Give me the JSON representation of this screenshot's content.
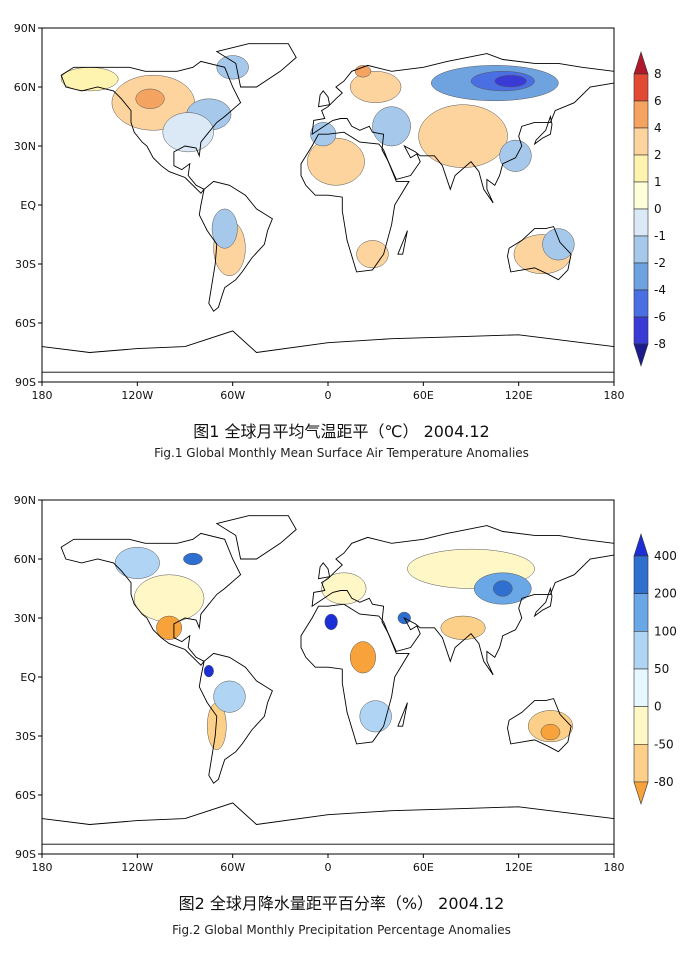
{
  "figures": [
    {
      "id": "temperature",
      "caption_cn": "图1  全球月平均气温距平（℃）  2004.12",
      "caption_en": "Fig.1  Global Monthly Mean Surface Air Temperature Anomalies",
      "lat_labels": [
        "90N",
        "60N",
        "30N",
        "EQ",
        "30S",
        "60S",
        "90S"
      ],
      "lon_labels": [
        "180",
        "120W",
        "60W",
        "0",
        "60E",
        "120E",
        "180"
      ],
      "colorbar": {
        "labels": [
          "8",
          "6",
          "4",
          "2",
          "1",
          "0",
          "-1",
          "-2",
          "-4",
          "-6",
          "-8"
        ],
        "colors": [
          "#b2182b",
          "#e34a33",
          "#f4a460",
          "#fdd49e",
          "#fff3b0",
          "#ffffd9",
          "#dbe8f5",
          "#a6c8ea",
          "#6fa3e0",
          "#4a6fe3",
          "#3a3ad6",
          "#1c1c8c"
        ]
      },
      "regions": [
        {
          "color": "#fdd49e",
          "lon": -110,
          "lat": 52,
          "rx": 26,
          "ry": 14
        },
        {
          "color": "#f4a460",
          "lon": -112,
          "lat": 54,
          "rx": 9,
          "ry": 5
        },
        {
          "color": "#fff3b0",
          "lon": -150,
          "lat": 64,
          "rx": 18,
          "ry": 6
        },
        {
          "color": "#a6c8ea",
          "lon": -75,
          "lat": 46,
          "rx": 14,
          "ry": 8
        },
        {
          "color": "#dbe8f5",
          "lon": -88,
          "lat": 37,
          "rx": 16,
          "ry": 10
        },
        {
          "color": "#a6c8ea",
          "lon": -60,
          "lat": 70,
          "rx": 10,
          "ry": 6
        },
        {
          "color": "#fdd49e",
          "lon": -62,
          "lat": -22,
          "rx": 10,
          "ry": 14
        },
        {
          "color": "#a6c8ea",
          "lon": -65,
          "lat": -12,
          "rx": 8,
          "ry": 10
        },
        {
          "color": "#fdd49e",
          "lon": 5,
          "lat": 22,
          "rx": 18,
          "ry": 12
        },
        {
          "color": "#a6c8ea",
          "lon": -3,
          "lat": 36,
          "rx": 8,
          "ry": 6
        },
        {
          "color": "#fdd49e",
          "lon": 30,
          "lat": 60,
          "rx": 16,
          "ry": 8
        },
        {
          "color": "#f4a460",
          "lon": 22,
          "lat": 68,
          "rx": 5,
          "ry": 3
        },
        {
          "color": "#a6c8ea",
          "lon": 40,
          "lat": 40,
          "rx": 12,
          "ry": 10
        },
        {
          "color": "#fdd49e",
          "lon": 28,
          "lat": -25,
          "rx": 10,
          "ry": 7
        },
        {
          "color": "#fdd49e",
          "lon": 85,
          "lat": 35,
          "rx": 28,
          "ry": 16
        },
        {
          "color": "#6fa3e0",
          "lon": 105,
          "lat": 62,
          "rx": 40,
          "ry": 9
        },
        {
          "color": "#4a6fe3",
          "lon": 110,
          "lat": 63,
          "rx": 20,
          "ry": 5
        },
        {
          "color": "#3a3ad6",
          "lon": 115,
          "lat": 63,
          "rx": 10,
          "ry": 3
        },
        {
          "color": "#a6c8ea",
          "lon": 118,
          "lat": 25,
          "rx": 10,
          "ry": 8
        },
        {
          "color": "#fdd49e",
          "lon": 135,
          "lat": -25,
          "rx": 18,
          "ry": 10
        },
        {
          "color": "#a6c8ea",
          "lon": 145,
          "lat": -20,
          "rx": 10,
          "ry": 8
        }
      ]
    },
    {
      "id": "precipitation",
      "caption_cn": "图2  全球月降水量距平百分率（%）  2004.12",
      "caption_en": "Fig.2  Global Monthly Precipitation Percentage Anomalies",
      "lat_labels": [
        "90N",
        "60N",
        "30N",
        "EQ",
        "30S",
        "60S",
        "90S"
      ],
      "lon_labels": [
        "180",
        "120W",
        "60W",
        "0",
        "60E",
        "120E",
        "180"
      ],
      "colorbar": {
        "labels": [
          "400",
          "200",
          "100",
          "50",
          "0",
          "-50",
          "-80"
        ],
        "colors": [
          "#1c2ed6",
          "#2f6fd0",
          "#6aa7e6",
          "#b0d4f4",
          "#e5f7ff",
          "#fff7c6",
          "#fdd089",
          "#f7a23a"
        ]
      },
      "regions": [
        {
          "color": "#fff7c6",
          "lon": -100,
          "lat": 40,
          "rx": 22,
          "ry": 12
        },
        {
          "color": "#f7a23a",
          "lon": -100,
          "lat": 25,
          "rx": 8,
          "ry": 6
        },
        {
          "color": "#b0d4f4",
          "lon": -120,
          "lat": 58,
          "rx": 14,
          "ry": 8
        },
        {
          "color": "#2f6fd0",
          "lon": -85,
          "lat": 60,
          "rx": 6,
          "ry": 3
        },
        {
          "color": "#fdd089",
          "lon": -70,
          "lat": -25,
          "rx": 6,
          "ry": 12
        },
        {
          "color": "#b0d4f4",
          "lon": -62,
          "lat": -10,
          "rx": 10,
          "ry": 8
        },
        {
          "color": "#1c2ed6",
          "lon": -75,
          "lat": 3,
          "rx": 3,
          "ry": 3
        },
        {
          "color": "#fff7c6",
          "lon": 10,
          "lat": 45,
          "rx": 14,
          "ry": 8
        },
        {
          "color": "#1c2ed6",
          "lon": 2,
          "lat": 28,
          "rx": 4,
          "ry": 4
        },
        {
          "color": "#2f6fd0",
          "lon": 48,
          "lat": 30,
          "rx": 4,
          "ry": 3
        },
        {
          "color": "#f7a23a",
          "lon": 22,
          "lat": 10,
          "rx": 8,
          "ry": 8
        },
        {
          "color": "#b0d4f4",
          "lon": 30,
          "lat": -20,
          "rx": 10,
          "ry": 8
        },
        {
          "color": "#fff7c6",
          "lon": 90,
          "lat": 55,
          "rx": 40,
          "ry": 10
        },
        {
          "color": "#6aa7e6",
          "lon": 110,
          "lat": 45,
          "rx": 18,
          "ry": 8
        },
        {
          "color": "#2f6fd0",
          "lon": 110,
          "lat": 45,
          "rx": 6,
          "ry": 4
        },
        {
          "color": "#fdd089",
          "lon": 85,
          "lat": 25,
          "rx": 14,
          "ry": 6
        },
        {
          "color": "#fdd089",
          "lon": 140,
          "lat": -25,
          "rx": 14,
          "ry": 8
        },
        {
          "color": "#f7a23a",
          "lon": 140,
          "lat": -28,
          "rx": 6,
          "ry": 4
        }
      ]
    }
  ],
  "coastlines": [
    [
      [
        -168,
        66
      ],
      [
        -160,
        70
      ],
      [
        -140,
        70
      ],
      [
        -125,
        70
      ],
      [
        -115,
        68
      ],
      [
        -95,
        68
      ],
      [
        -85,
        70
      ],
      [
        -80,
        73
      ],
      [
        -65,
        70
      ],
      [
        -60,
        60
      ],
      [
        -55,
        52
      ],
      [
        -65,
        45
      ],
      [
        -70,
        42
      ],
      [
        -76,
        36
      ],
      [
        -80,
        32
      ],
      [
        -81,
        25
      ],
      [
        -83,
        29
      ],
      [
        -90,
        30
      ],
      [
        -97,
        27
      ],
      [
        -97,
        20
      ],
      [
        -92,
        18
      ],
      [
        -87,
        21
      ],
      [
        -88,
        15
      ],
      [
        -83,
        10
      ],
      [
        -78,
        8
      ],
      [
        -80,
        6
      ],
      [
        -90,
        14
      ],
      [
        -100,
        17
      ],
      [
        -105,
        20
      ],
      [
        -110,
        24
      ],
      [
        -114,
        30
      ],
      [
        -117,
        32
      ],
      [
        -122,
        37
      ],
      [
        -124,
        42
      ],
      [
        -124,
        48
      ],
      [
        -130,
        54
      ],
      [
        -135,
        58
      ],
      [
        -145,
        60
      ],
      [
        -155,
        58
      ],
      [
        -165,
        60
      ],
      [
        -168,
        66
      ]
    ],
    [
      [
        -78,
        8
      ],
      [
        -72,
        12
      ],
      [
        -62,
        10
      ],
      [
        -52,
        5
      ],
      [
        -45,
        -2
      ],
      [
        -35,
        -7
      ],
      [
        -38,
        -13
      ],
      [
        -40,
        -20
      ],
      [
        -48,
        -27
      ],
      [
        -54,
        -34
      ],
      [
        -58,
        -38
      ],
      [
        -65,
        -42
      ],
      [
        -67,
        -47
      ],
      [
        -69,
        -52
      ],
      [
        -72,
        -54
      ],
      [
        -75,
        -50
      ],
      [
        -73,
        -40
      ],
      [
        -71,
        -30
      ],
      [
        -70,
        -20
      ],
      [
        -76,
        -13
      ],
      [
        -81,
        -5
      ],
      [
        -80,
        0
      ],
      [
        -78,
        8
      ]
    ],
    [
      [
        -55,
        60
      ],
      [
        -45,
        60
      ],
      [
        -30,
        68
      ],
      [
        -20,
        75
      ],
      [
        -25,
        82
      ],
      [
        -50,
        82
      ],
      [
        -70,
        78
      ],
      [
        -58,
        72
      ],
      [
        -55,
        60
      ]
    ],
    [
      [
        -17,
        15
      ],
      [
        -17,
        21
      ],
      [
        -10,
        30
      ],
      [
        -6,
        36
      ],
      [
        0,
        36
      ],
      [
        10,
        37
      ],
      [
        20,
        32
      ],
      [
        32,
        31
      ],
      [
        35,
        28
      ],
      [
        43,
        12
      ],
      [
        51,
        12
      ],
      [
        42,
        0
      ],
      [
        40,
        -10
      ],
      [
        35,
        -25
      ],
      [
        28,
        -33
      ],
      [
        18,
        -34
      ],
      [
        12,
        -18
      ],
      [
        9,
        -3
      ],
      [
        9,
        4
      ],
      [
        0,
        5
      ],
      [
        -8,
        5
      ],
      [
        -14,
        10
      ],
      [
        -17,
        15
      ]
    ],
    [
      [
        -10,
        36
      ],
      [
        -9,
        43
      ],
      [
        -2,
        44
      ],
      [
        -4,
        48
      ],
      [
        0,
        50
      ],
      [
        5,
        54
      ],
      [
        9,
        57
      ],
      [
        5,
        60
      ],
      [
        10,
        63
      ],
      [
        15,
        68
      ],
      [
        25,
        71
      ],
      [
        40,
        68
      ],
      [
        60,
        70
      ],
      [
        75,
        73
      ],
      [
        100,
        77
      ],
      [
        110,
        74
      ],
      [
        130,
        72
      ],
      [
        145,
        72
      ],
      [
        160,
        70
      ],
      [
        180,
        68
      ],
      [
        180,
        62
      ],
      [
        165,
        60
      ],
      [
        155,
        52
      ],
      [
        143,
        48
      ],
      [
        140,
        42
      ],
      [
        130,
        42
      ],
      [
        122,
        40
      ],
      [
        120,
        35
      ],
      [
        122,
        30
      ],
      [
        118,
        24
      ],
      [
        110,
        21
      ],
      [
        108,
        15
      ],
      [
        105,
        10
      ],
      [
        100,
        13
      ],
      [
        100,
        8
      ],
      [
        104,
        1
      ],
      [
        98,
        8
      ],
      [
        95,
        17
      ],
      [
        90,
        22
      ],
      [
        80,
        15
      ],
      [
        77,
        8
      ],
      [
        72,
        20
      ],
      [
        67,
        25
      ],
      [
        58,
        25
      ],
      [
        55,
        27
      ],
      [
        48,
        30
      ],
      [
        52,
        24
      ],
      [
        56,
        26
      ],
      [
        58,
        22
      ],
      [
        52,
        15
      ],
      [
        43,
        13
      ],
      [
        38,
        22
      ],
      [
        34,
        28
      ],
      [
        35,
        36
      ],
      [
        28,
        37
      ],
      [
        26,
        40
      ],
      [
        20,
        38
      ],
      [
        15,
        40
      ],
      [
        12,
        44
      ],
      [
        8,
        44
      ],
      [
        3,
        43
      ],
      [
        -10,
        36
      ]
    ],
    [
      [
        114,
        -22
      ],
      [
        122,
        -18
      ],
      [
        130,
        -12
      ],
      [
        137,
        -12
      ],
      [
        142,
        -11
      ],
      [
        146,
        -19
      ],
      [
        153,
        -25
      ],
      [
        151,
        -33
      ],
      [
        145,
        -38
      ],
      [
        138,
        -35
      ],
      [
        130,
        -32
      ],
      [
        115,
        -34
      ],
      [
        113,
        -26
      ],
      [
        114,
        -22
      ]
    ],
    [
      [
        -6,
        50
      ],
      [
        -5,
        56
      ],
      [
        -3,
        58
      ],
      [
        0,
        55
      ],
      [
        1,
        51
      ],
      [
        -6,
        50
      ]
    ],
    [
      [
        130,
        31
      ],
      [
        135,
        34
      ],
      [
        140,
        36
      ],
      [
        141,
        41
      ],
      [
        140,
        45
      ],
      [
        137,
        38
      ],
      [
        131,
        33
      ],
      [
        130,
        31
      ]
    ],
    [
      [
        44,
        -25
      ],
      [
        49,
        -15
      ],
      [
        50,
        -13
      ],
      [
        47,
        -25
      ],
      [
        44,
        -25
      ]
    ],
    [
      [
        -180,
        -72
      ],
      [
        -150,
        -75
      ],
      [
        -120,
        -73
      ],
      [
        -90,
        -72
      ],
      [
        -60,
        -64
      ],
      [
        -45,
        -75
      ],
      [
        0,
        -70
      ],
      [
        40,
        -68
      ],
      [
        80,
        -67
      ],
      [
        120,
        -66
      ],
      [
        160,
        -70
      ],
      [
        180,
        -72
      ],
      [
        180,
        -85
      ],
      [
        -180,
        -85
      ],
      [
        -180,
        -72
      ]
    ]
  ]
}
